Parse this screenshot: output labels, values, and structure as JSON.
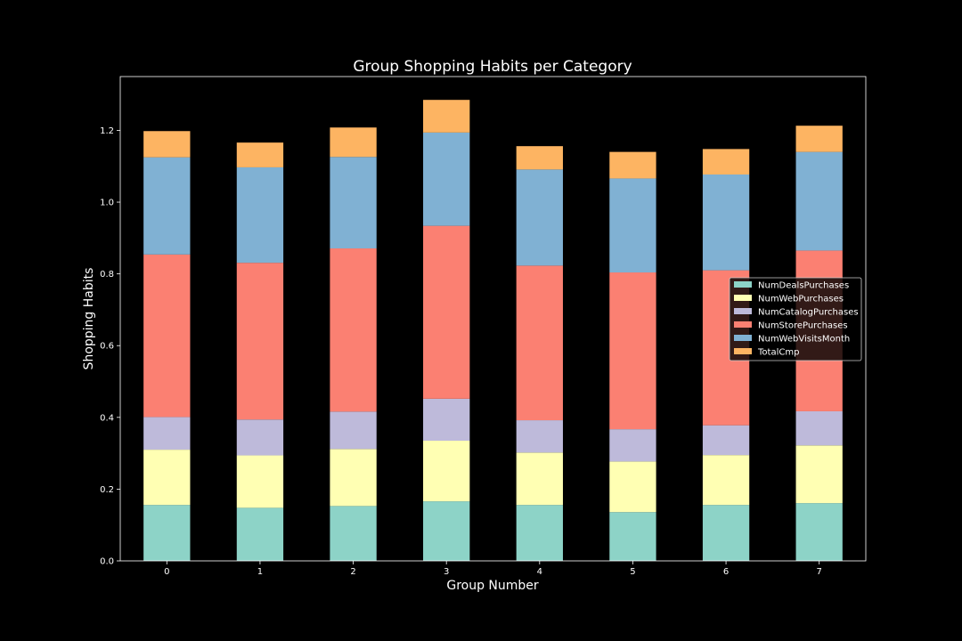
{
  "chart_data": {
    "type": "bar",
    "stacked": true,
    "title": "Group Shopping Habits per Category",
    "xlabel": "Group Number",
    "ylabel": "Shopping Habits",
    "categories": [
      "0",
      "1",
      "2",
      "3",
      "4",
      "5",
      "6",
      "7"
    ],
    "ylim": [
      0,
      1.35
    ],
    "yticks": [
      0.0,
      0.2,
      0.4,
      0.6,
      0.8,
      1.0,
      1.2
    ],
    "ytick_labels": [
      "0.0",
      "0.2",
      "0.4",
      "0.6",
      "0.8",
      "1.0",
      "1.2"
    ],
    "grid": false,
    "legend_position": "center-right",
    "series": [
      {
        "name": "NumDealsPurchases",
        "color": "#8dd3c7",
        "values": [
          0.156,
          0.148,
          0.153,
          0.166,
          0.156,
          0.136,
          0.156,
          0.161
        ]
      },
      {
        "name": "NumWebPurchases",
        "color": "#ffffb3",
        "values": [
          0.154,
          0.146,
          0.159,
          0.169,
          0.146,
          0.141,
          0.139,
          0.161
        ]
      },
      {
        "name": "NumCatalogPurchases",
        "color": "#bebada",
        "values": [
          0.091,
          0.1,
          0.104,
          0.117,
          0.09,
          0.09,
          0.083,
          0.095
        ]
      },
      {
        "name": "NumStorePurchases",
        "color": "#fb8072",
        "values": [
          0.453,
          0.437,
          0.455,
          0.482,
          0.431,
          0.437,
          0.432,
          0.448
        ]
      },
      {
        "name": "NumWebVisitsMonth",
        "color": "#80b1d3",
        "values": [
          0.271,
          0.266,
          0.255,
          0.26,
          0.268,
          0.262,
          0.267,
          0.275
        ]
      },
      {
        "name": "TotalCmp",
        "color": "#fdb462",
        "values": [
          0.073,
          0.069,
          0.082,
          0.091,
          0.065,
          0.074,
          0.071,
          0.073
        ]
      }
    ]
  }
}
